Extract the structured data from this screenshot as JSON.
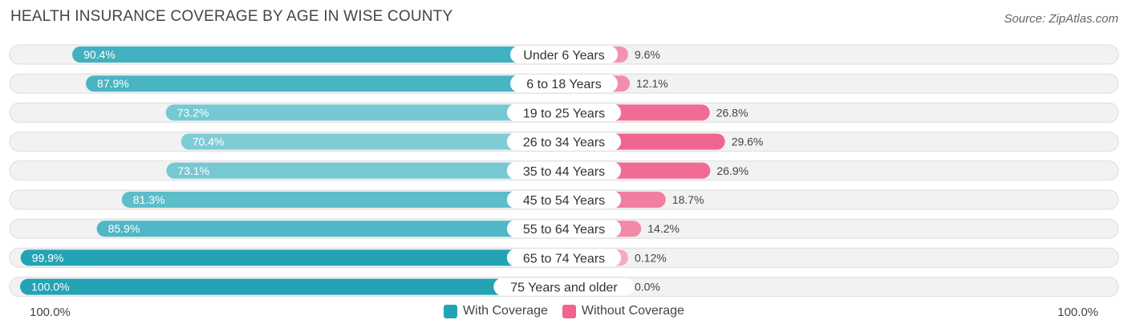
{
  "title": "HEALTH INSURANCE COVERAGE BY AGE IN WISE COUNTY",
  "source": "Source: ZipAtlas.com",
  "colors": {
    "with_dark": "#24a3b5",
    "with_light": "#7fcdd6",
    "without_dark": "#f0648e",
    "without_light": "#f6a9c2",
    "track": "#f2f2f2",
    "track_border": "#dddddd"
  },
  "chart_data": {
    "type": "bar",
    "orientation": "horizontal-diverging",
    "title": "HEALTH INSURANCE COVERAGE BY AGE IN WISE COUNTY",
    "categories": [
      "Under 6 Years",
      "6 to 18 Years",
      "19 to 25 Years",
      "26 to 34 Years",
      "35 to 44 Years",
      "45 to 54 Years",
      "55 to 64 Years",
      "65 to 74 Years",
      "75 Years and older"
    ],
    "series": [
      {
        "name": "With Coverage",
        "values": [
          90.4,
          87.9,
          73.2,
          70.4,
          73.1,
          81.3,
          85.9,
          99.9,
          100.0
        ],
        "labels": [
          "90.4%",
          "87.9%",
          "73.2%",
          "70.4%",
          "73.1%",
          "81.3%",
          "85.9%",
          "99.9%",
          "100.0%"
        ]
      },
      {
        "name": "Without Coverage",
        "values": [
          9.6,
          12.1,
          26.8,
          29.6,
          26.9,
          18.7,
          14.2,
          0.12,
          0.0
        ],
        "labels": [
          "9.6%",
          "12.1%",
          "26.8%",
          "29.6%",
          "26.9%",
          "18.7%",
          "14.2%",
          "0.12%",
          "0.0%"
        ]
      }
    ],
    "xlim": [
      -100,
      100
    ],
    "axis_left_label": "100.0%",
    "axis_right_label": "100.0%",
    "legend_position": "bottom-center"
  }
}
